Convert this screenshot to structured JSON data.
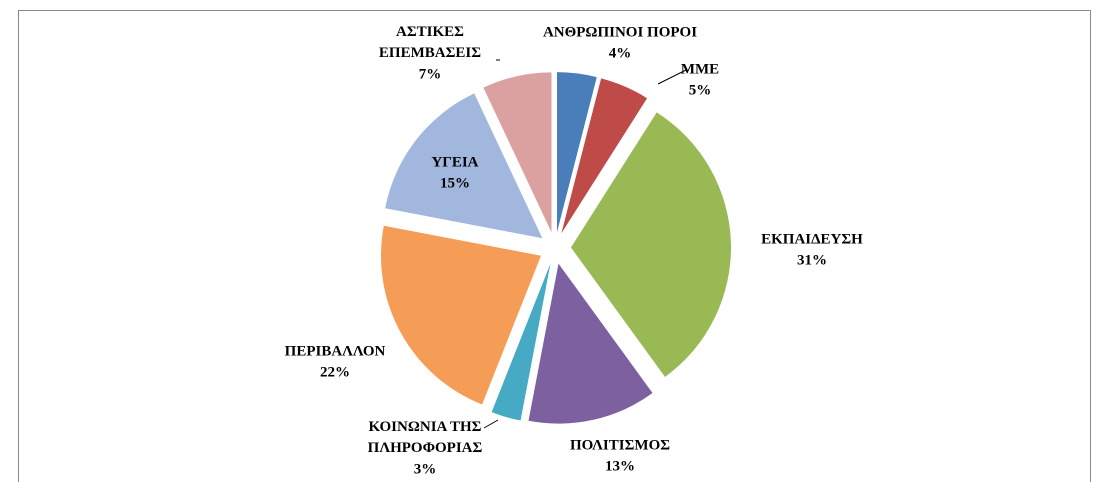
{
  "chart_data": {
    "type": "pie",
    "categories": [
      "ΑΝΘΡΩΠΙΝΟΙ ΠΟΡΟΙ",
      "ΜΜΕ",
      "ΕΚΠΑΙΔΕΥΣΗ",
      "ΠΟΛΙΤΙΣΜΟΣ",
      "ΚΟΙΝΩΝΙΑ ΤΗΣ ΠΛΗΡΟΦΟΡΙΑΣ",
      "ΠΕΡΙΒΑΛΛΟΝ",
      "ΥΓΕΙΑ",
      "ΑΣΤΙΚΕΣ ΕΠΕΜΒΑΣΕΙΣ"
    ],
    "values": [
      4,
      5,
      31,
      13,
      3,
      22,
      15,
      7
    ],
    "value_labels": [
      "4%",
      "5%",
      "31%",
      "13%",
      "3%",
      "22%",
      "15%",
      "7%"
    ],
    "colors": [
      "#4a7ebb",
      "#be4b48",
      "#98b954",
      "#7d60a0",
      "#46aac5",
      "#f59d56",
      "#a2b7de",
      "#dba1a0"
    ],
    "exploded": true
  }
}
